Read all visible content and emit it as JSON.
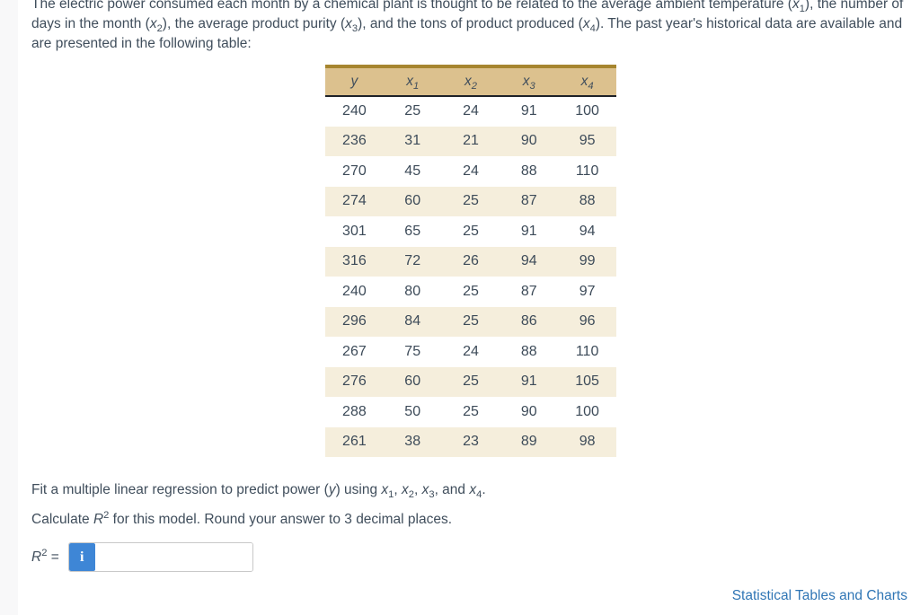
{
  "theme": {
    "text": "#404e5c",
    "strip_bg": "#f8f8f9",
    "header_bg": "#dcc18e",
    "header_top": "#a6852f",
    "header_rule": "#1e2228",
    "stripe": "#f5eedc",
    "info_bg": "#3e86d6",
    "input_border": "#c9c9c9",
    "link": "#3076b5"
  },
  "intro": {
    "text": "The electric power consumed each month by a chemical plant is thought to be related to the average ambient temperature (x_1), the number of days in the month (x_2), the average product purity (x_3), and the tons of product produced (x_4). The past year's historical data are available and are presented in the following table:"
  },
  "table": {
    "headers": [
      "y",
      "x_1",
      "x_2",
      "x_3",
      "x_4"
    ],
    "rows": [
      [
        240,
        25,
        24,
        91,
        100
      ],
      [
        236,
        31,
        21,
        90,
        95
      ],
      [
        270,
        45,
        24,
        88,
        110
      ],
      [
        274,
        60,
        25,
        87,
        88
      ],
      [
        301,
        65,
        25,
        91,
        94
      ],
      [
        316,
        72,
        26,
        94,
        99
      ],
      [
        240,
        80,
        25,
        87,
        97
      ],
      [
        296,
        84,
        25,
        86,
        96
      ],
      [
        267,
        75,
        24,
        88,
        110
      ],
      [
        276,
        60,
        25,
        91,
        105
      ],
      [
        288,
        50,
        25,
        90,
        100
      ],
      [
        261,
        38,
        23,
        89,
        98
      ]
    ]
  },
  "question": {
    "fit_text": "Fit a multiple linear regression to predict power (y) using x_1, x_2, x_3, and x_4.",
    "calc_text": "Calculate R^2 for this model. Round your answer to 3 decimal places."
  },
  "answer": {
    "label": "R^2 =",
    "info_icon": "i",
    "input_value": ""
  },
  "footer": {
    "link_label": "Statistical Tables and Charts"
  }
}
